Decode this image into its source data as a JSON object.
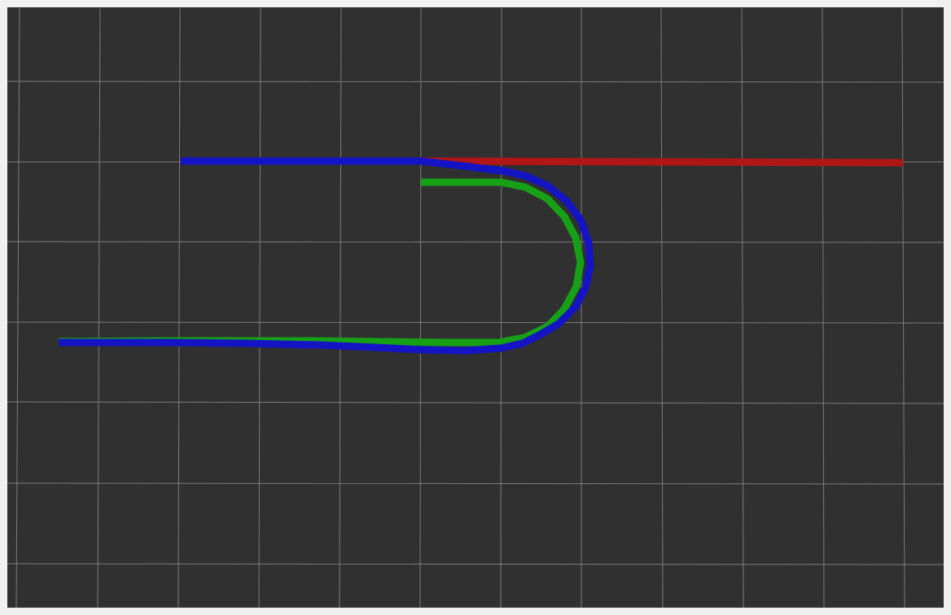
{
  "viewport": {
    "background_color": "#303030",
    "grid_color": "#8a8a8a"
  },
  "paths": [
    {
      "id": "red-path",
      "color": "#b01616"
    },
    {
      "id": "green-path",
      "color": "#16a016"
    },
    {
      "id": "blue-path",
      "color": "#1414c4"
    }
  ]
}
